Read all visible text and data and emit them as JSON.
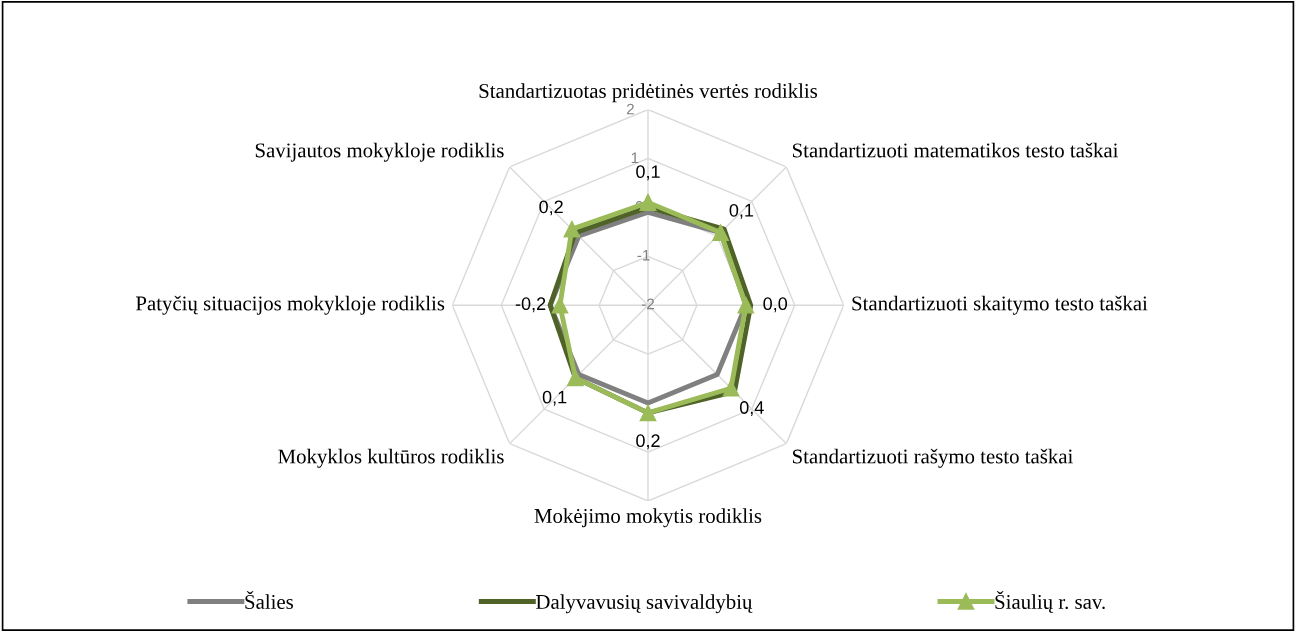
{
  "chart_data": {
    "type": "radar",
    "categories": [
      "Standartizuotas pridėtinės vertės rodiklis",
      "Standartizuoti matematikos testo taškai",
      "Standartizuoti skaitymo testo taškai",
      "Standartizuoti rašymo testo taškai",
      "Mokėjimo mokytis rodiklis",
      "Mokyklos kultūros rodiklis",
      "Patyčių situacijos mokykloje rodiklis",
      "Savijautos mokykloje rodiklis"
    ],
    "ylim": [
      -2,
      2
    ],
    "yticks": [
      -2,
      -1,
      0,
      1,
      2
    ],
    "grid": true,
    "legend": "bottom",
    "series": [
      {
        "name": "Šalies",
        "color": "#808080",
        "marker": "none",
        "values": [
          -0.1,
          0.1,
          0.0,
          0.0,
          0.0,
          0.0,
          0.0,
          0.0
        ]
      },
      {
        "name": "Dalyvavusių savivaldybių",
        "color": "#4f6228",
        "marker": "none",
        "values": [
          0.0,
          0.2,
          0.1,
          0.5,
          0.2,
          0.1,
          0.0,
          0.1
        ]
      },
      {
        "name": "Šiaulių r. sav.",
        "color": "#9bbb59",
        "marker": "triangle",
        "values": [
          0.1,
          0.1,
          0.0,
          0.4,
          0.2,
          0.1,
          -0.2,
          0.2
        ],
        "value_labels": [
          "0,1",
          "0,1",
          "0,0",
          "0,4",
          "0,2",
          "0,1",
          "-0,2",
          "0,2"
        ]
      }
    ]
  }
}
